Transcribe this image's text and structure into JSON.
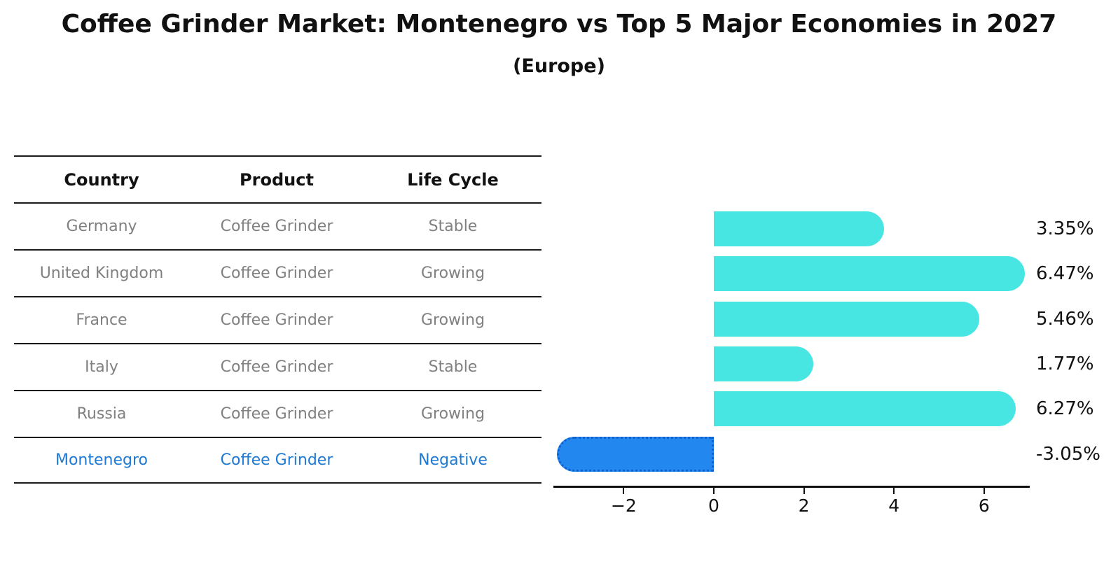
{
  "title": "Coffee Grinder Market: Montenegro vs Top 5 Major Economies in 2027",
  "subtitle": "(Europe)",
  "table": {
    "headers": [
      "Country",
      "Product",
      "Life Cycle"
    ],
    "rows": [
      {
        "country": "Germany",
        "product": "Coffee Grinder",
        "life_cycle": "Stable",
        "highlight": false
      },
      {
        "country": "United Kingdom",
        "product": "Coffee Grinder",
        "life_cycle": "Growing",
        "highlight": false
      },
      {
        "country": "France",
        "product": "Coffee Grinder",
        "life_cycle": "Growing",
        "highlight": false
      },
      {
        "country": "Italy",
        "product": "Coffee Grinder",
        "life_cycle": "Stable",
        "highlight": false
      },
      {
        "country": "Russia",
        "product": "Coffee Grinder",
        "life_cycle": "Growing",
        "highlight": false
      },
      {
        "country": "Montenegro",
        "product": "Coffee Grinder",
        "life_cycle": "Negative",
        "highlight": true
      }
    ]
  },
  "chart_data": {
    "type": "bar",
    "orientation": "horizontal",
    "categories": [
      "Germany",
      "United Kingdom",
      "France",
      "Italy",
      "Russia",
      "Montenegro"
    ],
    "values": [
      3.35,
      6.47,
      5.46,
      1.77,
      6.27,
      -3.05
    ],
    "value_labels": [
      "3.35%",
      "6.47%",
      "5.46%",
      "1.77%",
      "6.27%",
      "-3.05%"
    ],
    "x_ticks": [
      -2,
      0,
      2,
      4,
      6
    ],
    "x_tick_labels": [
      "−2",
      "0",
      "2",
      "4",
      "6"
    ],
    "xlim": [
      -3.6,
      7.0
    ],
    "grid": false,
    "legend": null,
    "bar_color": "#48e6e2",
    "highlight_index": 5,
    "highlight_color": "#2287ee",
    "highlight_border_color": "#0e62cf",
    "highlight_text_color": "#1e79d3"
  }
}
